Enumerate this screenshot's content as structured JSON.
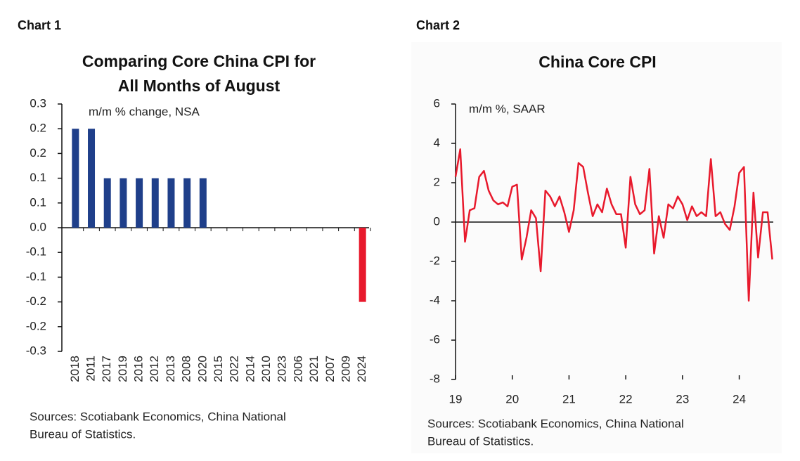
{
  "chart_data": [
    {
      "type": "bar",
      "label": "Chart 1",
      "title": [
        "Comparing Core China CPI for",
        "All Months of August"
      ],
      "annotation": "m/m % change, NSA",
      "source": [
        "Sources: Scotiabank Economics, China National",
        "Bureau of Statistics."
      ],
      "categories": [
        "2018",
        "2011",
        "2017",
        "2019",
        "2016",
        "2012",
        "2013",
        "2008",
        "2020",
        "2015",
        "2022",
        "2014",
        "2010",
        "2023",
        "2006",
        "2021",
        "2007",
        "2009",
        "2024"
      ],
      "values": [
        0.24,
        0.24,
        0.12,
        0.12,
        0.12,
        0.12,
        0.12,
        0.12,
        0.12,
        0,
        0,
        0,
        0,
        0,
        0,
        0,
        0,
        0,
        -0.18
      ],
      "colors": [
        "#1f3f8a",
        "#1f3f8a",
        "#1f3f8a",
        "#1f3f8a",
        "#1f3f8a",
        "#1f3f8a",
        "#1f3f8a",
        "#1f3f8a",
        "#1f3f8a",
        "#1f3f8a",
        "#1f3f8a",
        "#1f3f8a",
        "#1f3f8a",
        "#1f3f8a",
        "#1f3f8a",
        "#1f3f8a",
        "#1f3f8a",
        "#1f3f8a",
        "#e8192c"
      ],
      "ylim": [
        -0.3,
        0.3
      ],
      "yticks": [
        {
          "value": 0.3,
          "label": "0.3"
        },
        {
          "value": 0.24,
          "label": "0.2"
        },
        {
          "value": 0.18,
          "label": "0.2"
        },
        {
          "value": 0.12,
          "label": "0.1"
        },
        {
          "value": 0.06,
          "label": "0.1"
        },
        {
          "value": 0,
          "label": "0.0"
        },
        {
          "value": -0.06,
          "label": "-0.1"
        },
        {
          "value": -0.12,
          "label": "-0.1"
        },
        {
          "value": -0.18,
          "label": "-0.2"
        },
        {
          "value": -0.24,
          "label": "-0.2"
        },
        {
          "value": -0.3,
          "label": "-0.3"
        }
      ]
    },
    {
      "type": "line",
      "label": "Chart 2",
      "title": [
        "China Core CPI"
      ],
      "annotation": "m/m %, SAAR",
      "source": [
        "Sources: Scotiabank Economics, China National",
        "Bureau of Statistics."
      ],
      "color": "#e8192c",
      "x": [
        19,
        19.083,
        19.167,
        19.25,
        19.333,
        19.417,
        19.5,
        19.583,
        19.667,
        19.75,
        19.833,
        19.917,
        20,
        20.083,
        20.167,
        20.25,
        20.333,
        20.417,
        20.5,
        20.583,
        20.667,
        20.75,
        20.833,
        20.917,
        21,
        21.083,
        21.167,
        21.25,
        21.333,
        21.417,
        21.5,
        21.583,
        21.667,
        21.75,
        21.833,
        21.917,
        22,
        22.083,
        22.167,
        22.25,
        22.333,
        22.417,
        22.5,
        22.583,
        22.667,
        22.75,
        22.833,
        22.917,
        23,
        23.083,
        23.167,
        23.25,
        23.333,
        23.417,
        23.5,
        23.583,
        23.667,
        23.75,
        23.833,
        23.917,
        24,
        24.083,
        24.167,
        24.25,
        24.333,
        24.417,
        24.5,
        24.583
      ],
      "values": [
        2.3,
        3.7,
        -1.0,
        0.6,
        0.7,
        2.3,
        2.6,
        1.6,
        1.1,
        0.9,
        1.0,
        0.8,
        1.8,
        1.9,
        -1.9,
        -0.8,
        0.6,
        0.2,
        -2.5,
        1.6,
        1.3,
        0.8,
        1.3,
        0.5,
        -0.5,
        0.6,
        3.0,
        2.8,
        1.5,
        0.3,
        0.9,
        0.5,
        1.7,
        0.9,
        0.4,
        0.4,
        -1.3,
        2.3,
        0.9,
        0.4,
        0.6,
        2.7,
        -1.6,
        0.3,
        -0.8,
        0.9,
        0.7,
        1.3,
        0.9,
        0.1,
        0.8,
        0.3,
        0.5,
        0.3,
        3.2,
        0.3,
        0.5,
        -0.1,
        -0.4,
        0.8,
        2.5,
        2.8,
        -4.0,
        1.5,
        -1.8,
        0.5,
        0.5,
        -1.9
      ],
      "xlim": [
        19,
        24.6
      ],
      "xticks": [
        19,
        20,
        21,
        22,
        23,
        24
      ],
      "ylim": [
        -8,
        6
      ],
      "yticks": [
        -8,
        -6,
        -4,
        -2,
        0,
        2,
        4,
        6
      ]
    }
  ]
}
